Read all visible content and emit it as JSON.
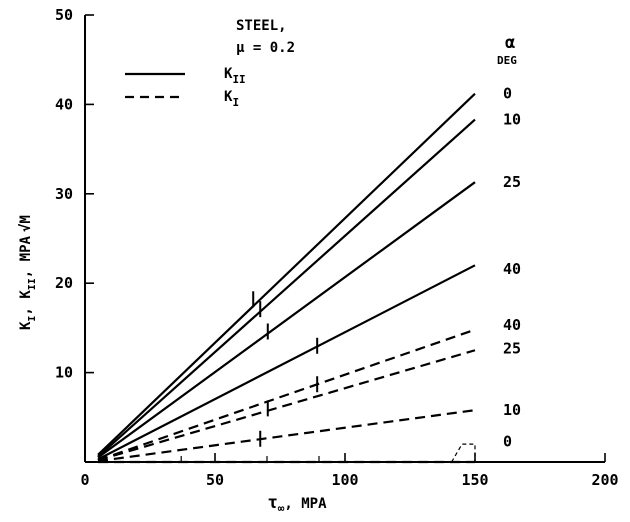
{
  "chart_data": {
    "type": "line",
    "x_axis": {
      "label_symbol": "τ",
      "label_sub": "∞",
      "label_unit": ", MPA",
      "ticks": [
        0,
        50,
        100,
        150,
        200
      ],
      "range": [
        0,
        200
      ]
    },
    "y_axis": {
      "label_parts": [
        "K",
        "I",
        ", K",
        "II",
        ", MPA",
        "√M"
      ],
      "ticks": [
        10,
        20,
        30,
        40,
        50
      ],
      "range": [
        0,
        50
      ]
    },
    "legend": {
      "material": "STEEL,",
      "mu": "μ = 0.2",
      "solid_label": "K",
      "solid_sub": "II",
      "dashed_label": "K",
      "dashed_sub": "I",
      "alpha_header": "α",
      "alpha_unit": "DEG"
    },
    "series": [
      {
        "name": "0",
        "stat": "K_II",
        "style": "solid",
        "x": [
          5,
          150
        ],
        "y": [
          0.8,
          41.2
        ],
        "marker": [
          64.7,
          18.2
        ]
      },
      {
        "name": "10",
        "stat": "K_II",
        "style": "solid",
        "x": [
          5,
          150
        ],
        "y": [
          0.6,
          38.3
        ],
        "marker": [
          67.4,
          17.1
        ]
      },
      {
        "name": "25",
        "stat": "K_II",
        "style": "solid",
        "x": [
          5,
          150
        ],
        "y": [
          0.5,
          31.3
        ],
        "marker": [
          70.3,
          14.6
        ]
      },
      {
        "name": "40",
        "stat": "K_II",
        "style": "solid",
        "x": [
          5,
          150
        ],
        "y": [
          0.3,
          22.0
        ],
        "marker": [
          89.3,
          13.0
        ]
      },
      {
        "name": "40",
        "stat": "K_I",
        "style": "dashed",
        "x": [
          5,
          150
        ],
        "y": [
          0.2,
          14.8
        ],
        "marker": [
          89.3,
          8.7
        ]
      },
      {
        "name": "25",
        "stat": "K_I",
        "style": "dashed",
        "x": [
          5,
          150
        ],
        "y": [
          0.2,
          12.5
        ],
        "marker": [
          70.3,
          6.0
        ]
      },
      {
        "name": "10",
        "stat": "K_I",
        "style": "dashed",
        "x": [
          5,
          150
        ],
        "y": [
          0.1,
          5.8
        ],
        "marker": [
          67.4,
          2.6
        ]
      },
      {
        "name": "0",
        "stat": "K_I",
        "style": "dashed",
        "x": [
          5,
          150
        ],
        "y": [
          0,
          0
        ],
        "marker": null
      }
    ],
    "series_labels": [
      {
        "text": "0",
        "y": 41.2
      },
      {
        "text": "10",
        "y": 38.3
      },
      {
        "text": "25",
        "y": 31.3
      },
      {
        "text": "40",
        "y": 21.6
      },
      {
        "text": "40",
        "y": 15.3
      },
      {
        "text": "25",
        "y": 12.7
      },
      {
        "text": "10",
        "y": 5.8
      },
      {
        "text": "0",
        "y": 2.3
      }
    ]
  }
}
